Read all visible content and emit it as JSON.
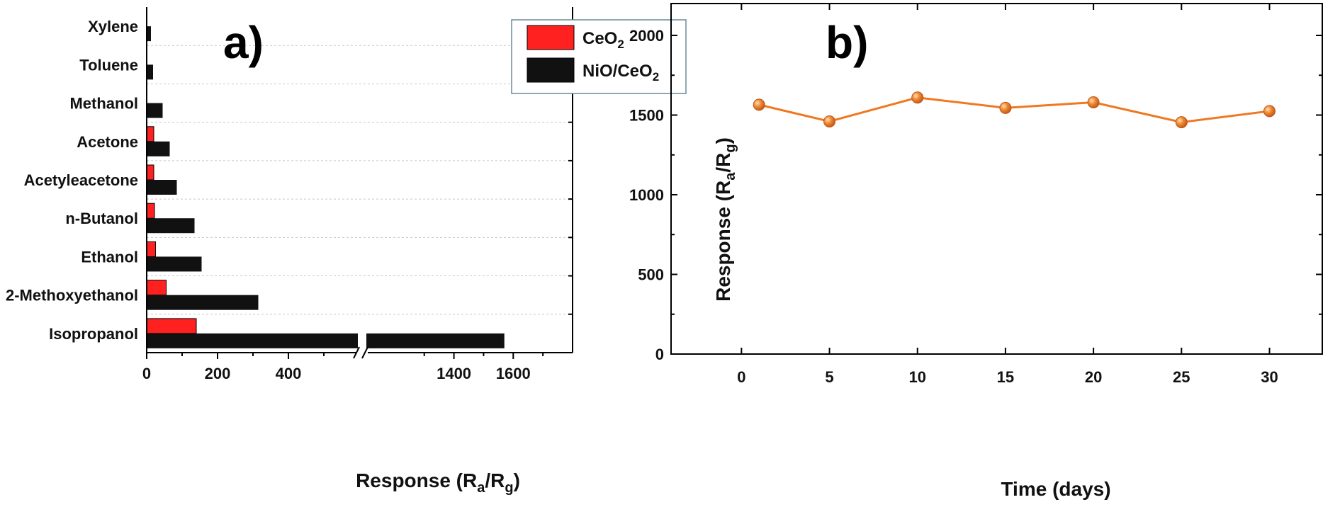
{
  "chart_data": [
    {
      "panel_label": "a)",
      "type": "bar",
      "orientation": "horizontal",
      "categories": [
        "Isopropanol",
        "2-Methoxyethanol",
        "Ethanol",
        "n-Butanol",
        "Acetyleacetone",
        "Acetone",
        "Methanol",
        "Toluene",
        "Xylene"
      ],
      "series": [
        {
          "name_main": "CeO",
          "name_sub": "2",
          "name_tail": "",
          "color": "#ff2020",
          "values": [
            140,
            55,
            25,
            22,
            20,
            20,
            0,
            0,
            0
          ]
        },
        {
          "name_main": "NiO/CeO",
          "name_sub": "2",
          "name_tail": "",
          "color": "#111111",
          "values": [
            1570,
            315,
            155,
            135,
            85,
            65,
            45,
            18,
            12
          ]
        }
      ],
      "x_axis": {
        "title_main": "Response (R",
        "title_sub1": "a",
        "title_mid": "/R",
        "title_sub2": "g",
        "title_tail": ")",
        "broken": true,
        "segment1": [
          0,
          600
        ],
        "segment2": [
          1100,
          1800
        ],
        "ticks": [
          {
            "value": 0,
            "label": "0"
          },
          {
            "value": 200,
            "label": "200"
          },
          {
            "value": 400,
            "label": "400"
          },
          {
            "value": 1400,
            "label": "1400"
          },
          {
            "value": 1600,
            "label": "1600"
          }
        ]
      },
      "grid": true,
      "legend_position": "top-right"
    },
    {
      "panel_label": "b)",
      "type": "line",
      "series": [
        {
          "name": "",
          "color": "#f07820",
          "x": [
            1,
            5,
            10,
            15,
            20,
            25,
            30
          ],
          "y": [
            1565,
            1460,
            1610,
            1545,
            1580,
            1455,
            1525
          ]
        }
      ],
      "x_axis": {
        "title": "Time (days)",
        "range": [
          -4,
          33
        ],
        "ticks": [
          {
            "value": 0,
            "label": "0"
          },
          {
            "value": 5,
            "label": "5"
          },
          {
            "value": 10,
            "label": "10"
          },
          {
            "value": 15,
            "label": "15"
          },
          {
            "value": 20,
            "label": "20"
          },
          {
            "value": 25,
            "label": "25"
          },
          {
            "value": 30,
            "label": "30"
          }
        ]
      },
      "y_axis": {
        "title_main": "Response (R",
        "title_sub1": "a",
        "title_mid": "/R",
        "title_sub2": "g",
        "title_tail": ")",
        "range": [
          0,
          2200
        ],
        "ticks": [
          {
            "value": 0,
            "label": "0"
          },
          {
            "value": 500,
            "label": "500"
          },
          {
            "value": 1000,
            "label": "1000"
          },
          {
            "value": 1500,
            "label": "1500"
          },
          {
            "value": 2000,
            "label": "2000"
          }
        ]
      },
      "grid": false
    }
  ]
}
